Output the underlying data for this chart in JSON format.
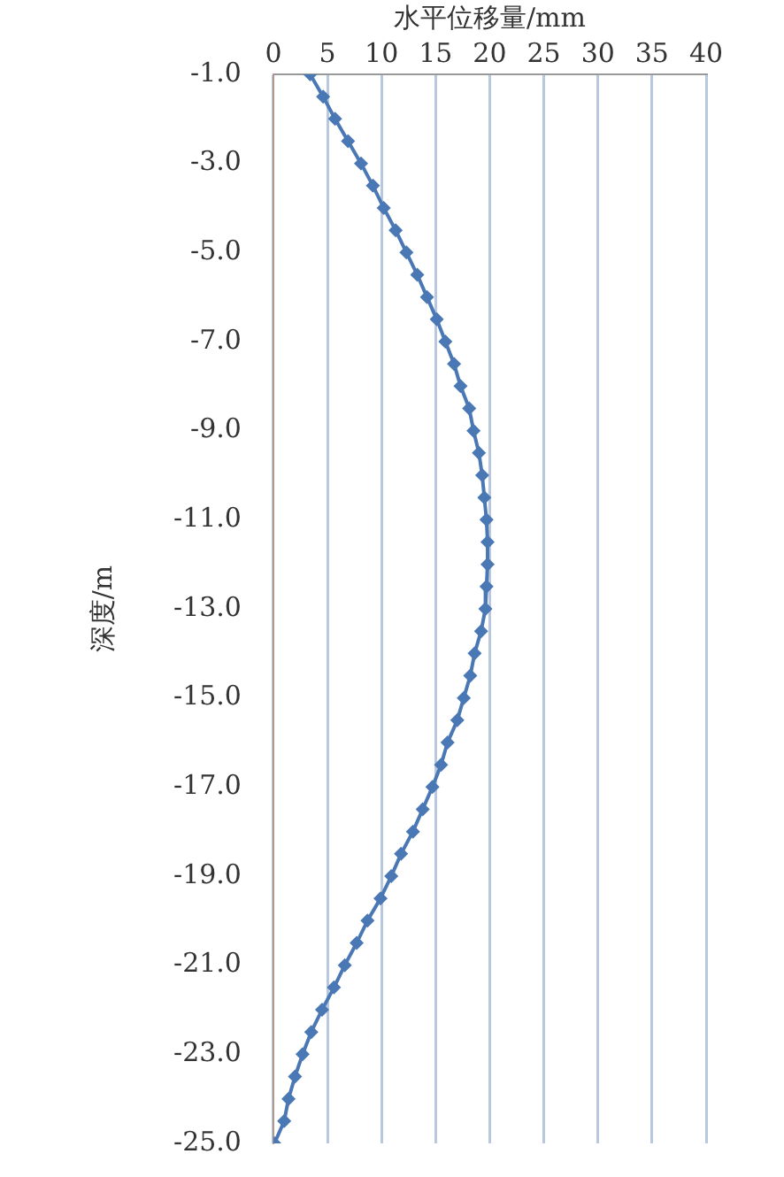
{
  "chart_data": {
    "type": "line",
    "xlabel": "水平位移量/mm",
    "ylabel": "深度/m",
    "x": [
      3.4,
      4.6,
      5.7,
      6.9,
      8.1,
      9.2,
      10.2,
      11.3,
      12.3,
      13.3,
      14.2,
      15.1,
      15.9,
      16.7,
      17.3,
      18.1,
      18.5,
      19.0,
      19.3,
      19.5,
      19.7,
      19.8,
      19.8,
      19.7,
      19.6,
      19.2,
      18.6,
      18.2,
      17.6,
      17.0,
      16.1,
      15.5,
      14.7,
      13.8,
      12.9,
      11.8,
      10.9,
      9.9,
      8.7,
      7.7,
      6.6,
      5.6,
      4.5,
      3.5,
      2.7,
      2.0,
      1.4,
      1.0,
      0.1
    ],
    "series": [
      {
        "color": "#4a78b5",
        "values": [
          -1.0,
          -1.5,
          -2.0,
          -2.5,
          -3.0,
          -3.5,
          -4.0,
          -4.5,
          -5.0,
          -5.5,
          -6.0,
          -6.5,
          -7.0,
          -7.5,
          -8.0,
          -8.5,
          -9.0,
          -9.5,
          -10.0,
          -10.5,
          -11.0,
          -11.5,
          -12.0,
          -12.5,
          -13.0,
          -13.5,
          -14.0,
          -14.5,
          -15.0,
          -15.5,
          -16.0,
          -16.5,
          -17.0,
          -17.5,
          -18.0,
          -18.5,
          -19.0,
          -19.5,
          -20.0,
          -20.5,
          -21.0,
          -21.5,
          -22.0,
          -22.5,
          -23.0,
          -23.5,
          -24.0,
          -24.5,
          -25.0
        ]
      }
    ],
    "xlim": [
      0,
      40
    ],
    "xticks": [
      0,
      5,
      10,
      15,
      20,
      25,
      30,
      35,
      40
    ],
    "ylim": [
      -25,
      -1
    ],
    "yticks": [
      {
        "value": -1,
        "label": "-1.0"
      },
      {
        "value": -3,
        "label": "-3.0"
      },
      {
        "value": -5,
        "label": "-5.0"
      },
      {
        "value": -7,
        "label": "-7.0"
      },
      {
        "value": -9,
        "label": "-9.0"
      },
      {
        "value": -11,
        "label": "-11.0"
      },
      {
        "value": -13,
        "label": "-13.0"
      },
      {
        "value": -15,
        "label": "-15.0"
      },
      {
        "value": -17,
        "label": "-17.0"
      },
      {
        "value": -19,
        "label": "-19.0"
      },
      {
        "value": -21,
        "label": "-21.0"
      },
      {
        "value": -23,
        "label": "-23.0"
      },
      {
        "value": -25,
        "label": "-25.0"
      }
    ],
    "grid": "x",
    "marker": "diamond",
    "line_style": "solid"
  }
}
